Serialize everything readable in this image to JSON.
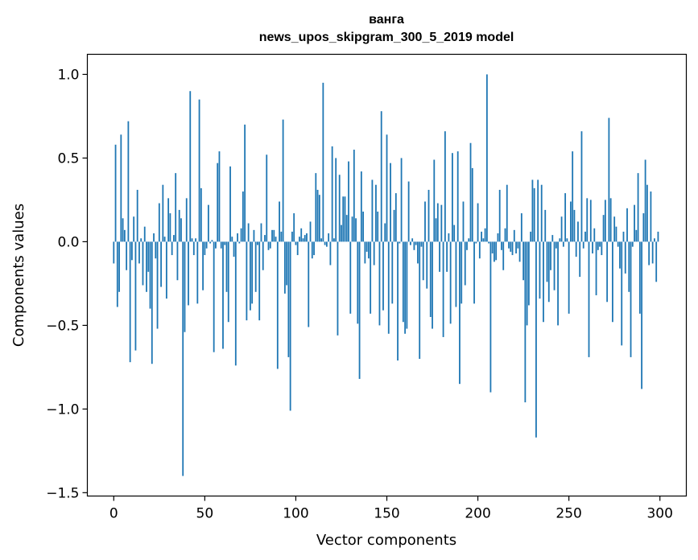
{
  "chart_data": {
    "type": "bar",
    "title_lines": [
      "ванга",
      "news_upos_skipgram_300_5_2019 model"
    ],
    "xlabel": "Vector components",
    "ylabel": "Components values",
    "xlim": [
      -14.5,
      314.5
    ],
    "ylim": [
      -1.52,
      1.12
    ],
    "x_ticks": [
      0,
      50,
      100,
      150,
      200,
      250,
      300
    ],
    "x_tick_labels": [
      "0",
      "50",
      "100",
      "150",
      "200",
      "250",
      "300"
    ],
    "y_ticks": [
      1.0,
      0.5,
      0.0,
      -0.5,
      -1.0,
      -1.5
    ],
    "y_tick_labels": [
      "1.0",
      "0.5",
      "0.0",
      "−0.5",
      "−1.0",
      "−1.5"
    ],
    "grid": false,
    "bar_color": "#1f77b4",
    "x": "0..299",
    "values": [
      -0.13,
      0.58,
      -0.39,
      -0.3,
      0.64,
      0.14,
      0.07,
      -0.17,
      0.72,
      -0.72,
      -0.11,
      0.15,
      -0.65,
      0.31,
      -0.13,
      0.02,
      -0.26,
      0.09,
      -0.3,
      -0.18,
      -0.4,
      -0.73,
      0.05,
      -0.1,
      -0.52,
      0.23,
      -0.27,
      0.34,
      0.03,
      -0.34,
      0.26,
      0.17,
      -0.08,
      0.04,
      0.41,
      -0.23,
      0.19,
      0.14,
      -1.4,
      -0.54,
      0.26,
      -0.38,
      0.9,
      0.02,
      -0.08,
      0.02,
      -0.37,
      0.85,
      0.32,
      -0.29,
      -0.08,
      -0.04,
      0.22,
      -0.01,
      0.01,
      -0.66,
      -0.04,
      0.47,
      0.54,
      -0.04,
      -0.64,
      -0.02,
      -0.3,
      -0.48,
      0.45,
      0.03,
      -0.09,
      -0.74,
      0.05,
      -0.01,
      0.08,
      0.3,
      0.7,
      -0.47,
      0.11,
      -0.41,
      -0.37,
      0.07,
      -0.3,
      -0.02,
      -0.47,
      0.11,
      -0.17,
      0.04,
      0.52,
      -0.05,
      -0.04,
      0.07,
      0.07,
      0.03,
      -0.76,
      0.24,
      0.06,
      0.73,
      -0.31,
      -0.26,
      -0.69,
      -1.01,
      0.06,
      0.17,
      -0.02,
      -0.08,
      0.03,
      0.08,
      0.02,
      0.04,
      0.05,
      -0.51,
      0.12,
      -0.1,
      -0.08,
      0.41,
      0.31,
      0.28,
      0.02,
      0.95,
      -0.02,
      -0.03,
      0.05,
      -0.14,
      0.57,
      0.02,
      0.5,
      -0.56,
      0.4,
      0.1,
      0.27,
      0.27,
      0.16,
      0.48,
      -0.43,
      0.15,
      0.55,
      0.14,
      -0.49,
      -0.82,
      0.42,
      0.18,
      -0.13,
      -0.06,
      -0.1,
      -0.43,
      0.37,
      -0.14,
      0.34,
      0.18,
      -0.5,
      0.78,
      -0.41,
      0.11,
      0.64,
      -0.55,
      0.47,
      -0.37,
      0.19,
      0.29,
      -0.71,
      -0.01,
      0.5,
      -0.48,
      -0.55,
      -0.52,
      0.36,
      -0.02,
      0.02,
      -0.05,
      -0.02,
      -0.13,
      -0.7,
      -0.03,
      -0.23,
      0.24,
      -0.28,
      0.31,
      -0.45,
      -0.52,
      0.49,
      0.14,
      0.23,
      -0.18,
      0.22,
      -0.57,
      0.66,
      -0.18,
      0.05,
      -0.49,
      0.53,
      0.1,
      -0.39,
      0.54,
      -0.85,
      -0.37,
      0.24,
      -0.26,
      -0.05,
      0.02,
      0.59,
      0.44,
      -0.37,
      -0.01,
      0.23,
      -0.1,
      0.06,
      0.02,
      0.08,
      1.0,
      -0.01,
      -0.9,
      -0.07,
      -0.12,
      -0.11,
      0.05,
      0.31,
      -0.05,
      -0.17,
      0.08,
      0.34,
      -0.04,
      -0.06,
      -0.08,
      0.07,
      -0.07,
      -0.04,
      -0.12,
      0.17,
      -0.23,
      -0.96,
      -0.5,
      -0.38,
      0.06,
      0.37,
      0.32,
      -1.17,
      0.37,
      -0.34,
      0.34,
      -0.48,
      0.19,
      -0.24,
      -0.36,
      -0.17,
      0.04,
      -0.29,
      -0.04,
      -0.5,
      0.02,
      0.15,
      -0.03,
      0.29,
      0.02,
      -0.43,
      0.24,
      0.54,
      0.19,
      -0.09,
      0.12,
      -0.21,
      0.66,
      -0.04,
      0.06,
      0.26,
      -0.69,
      0.25,
      -0.07,
      0.08,
      -0.32,
      -0.05,
      -0.03,
      -0.08,
      0.16,
      0.25,
      -0.36,
      0.74,
      0.26,
      -0.48,
      0.15,
      0.09,
      -0.03,
      -0.16,
      -0.62,
      0.06,
      -0.19,
      0.2,
      -0.3,
      -0.69,
      -0.03,
      0.22,
      0.07,
      0.41,
      -0.43,
      -0.88,
      0.17,
      0.49,
      0.34,
      -0.14,
      0.3,
      -0.13,
      0.02,
      -0.24,
      0.06
    ]
  }
}
